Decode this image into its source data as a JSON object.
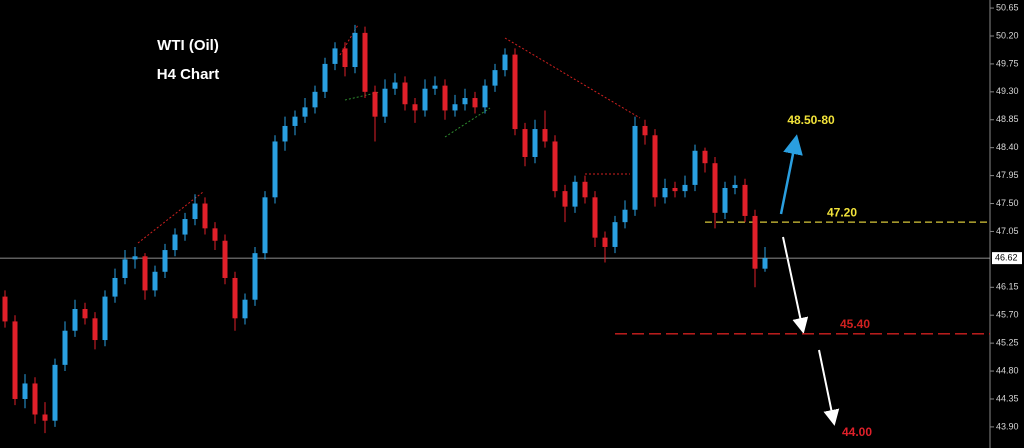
{
  "chart_data": {
    "type": "candlestick",
    "title": "WTI (Oil)",
    "subtitle": "H4 Chart",
    "up_color": "#2a9fe0",
    "down_color": "#e0202a",
    "ylim": [
      43.56,
      50.78
    ],
    "yticks": [
      50.65,
      {
        "value": 50.2,
        "label": "50.20"
      },
      49.75,
      {
        "value": 49.3,
        "label": "49.30"
      },
      48.85,
      {
        "value": 48.4,
        "label": "48.40"
      },
      47.95,
      {
        "value": 47.5,
        "label": "47.50"
      },
      47.05,
      46.15,
      {
        "value": 45.7,
        "label": "45.70"
      },
      45.25,
      {
        "value": 44.8,
        "label": "44.80"
      },
      44.35,
      {
        "value": 43.9,
        "label": "43.90"
      }
    ],
    "open": [
      46.0,
      45.6,
      44.35,
      44.6,
      44.1,
      44.0,
      44.9,
      45.45,
      45.8,
      45.65,
      45.3,
      46.0,
      46.3,
      46.6,
      46.65,
      46.1,
      46.4,
      46.75,
      47.0,
      47.25,
      47.5,
      47.1,
      46.9,
      46.3,
      45.65,
      45.95,
      46.7,
      47.6,
      48.5,
      48.75,
      48.9,
      49.05,
      49.3,
      49.75,
      50.0,
      49.7,
      50.25,
      49.3,
      48.9,
      49.35,
      49.45,
      49.1,
      49.0,
      49.35,
      49.4,
      49.0,
      49.1,
      49.2,
      49.05,
      49.4,
      49.65,
      49.9,
      48.7,
      48.25,
      48.7,
      48.5,
      47.7,
      47.45,
      47.85,
      47.6,
      46.95,
      46.8,
      47.2,
      47.4,
      48.75,
      48.6,
      47.6,
      47.75,
      47.7,
      47.8,
      48.35,
      48.15,
      47.35,
      47.75,
      47.8,
      47.3,
      46.45
    ],
    "high": [
      46.1,
      45.7,
      44.75,
      44.7,
      44.3,
      45.0,
      45.6,
      45.95,
      45.9,
      45.75,
      46.1,
      46.45,
      46.75,
      46.8,
      46.7,
      46.5,
      46.85,
      47.1,
      47.35,
      47.65,
      47.6,
      47.2,
      47.0,
      46.4,
      46.05,
      46.8,
      47.7,
      48.6,
      48.9,
      49.0,
      49.2,
      49.4,
      49.85,
      50.1,
      50.1,
      50.38,
      50.35,
      49.4,
      49.5,
      49.6,
      49.55,
      49.2,
      49.5,
      49.55,
      49.5,
      49.25,
      49.35,
      49.3,
      49.5,
      49.75,
      50.0,
      50.0,
      48.8,
      48.85,
      49.0,
      48.6,
      47.8,
      47.95,
      47.95,
      47.7,
      47.05,
      47.3,
      47.55,
      48.9,
      48.85,
      48.7,
      47.9,
      47.85,
      47.95,
      48.45,
      48.4,
      48.25,
      47.85,
      47.95,
      47.9,
      47.4,
      46.8
    ],
    "low": [
      45.5,
      44.25,
      44.2,
      43.95,
      43.8,
      43.9,
      44.8,
      45.35,
      45.55,
      45.15,
      45.2,
      45.9,
      46.2,
      46.45,
      45.95,
      46.0,
      46.3,
      46.65,
      46.9,
      47.15,
      47.0,
      46.75,
      46.2,
      45.45,
      45.55,
      45.85,
      46.6,
      47.5,
      48.35,
      48.6,
      48.8,
      48.95,
      49.2,
      49.65,
      49.55,
      49.6,
      49.2,
      48.5,
      48.8,
      49.25,
      49.0,
      48.8,
      48.9,
      49.25,
      48.85,
      48.9,
      49.0,
      48.95,
      48.95,
      49.3,
      49.55,
      48.6,
      48.1,
      48.15,
      48.4,
      47.6,
      47.2,
      47.35,
      47.5,
      46.8,
      46.55,
      46.7,
      47.1,
      47.3,
      48.45,
      47.45,
      47.5,
      47.6,
      47.6,
      47.7,
      48.0,
      47.1,
      47.25,
      47.65,
      47.2,
      46.15,
      46.4
    ],
    "close": [
      45.6,
      44.35,
      44.6,
      44.1,
      44.0,
      44.9,
      45.45,
      45.8,
      45.65,
      45.3,
      46.0,
      46.3,
      46.6,
      46.65,
      46.1,
      46.4,
      46.75,
      47.0,
      47.25,
      47.5,
      47.1,
      46.9,
      46.3,
      45.65,
      45.95,
      46.7,
      47.6,
      48.5,
      48.75,
      48.9,
      49.05,
      49.3,
      49.75,
      50.0,
      49.7,
      50.25,
      49.3,
      48.9,
      49.35,
      49.45,
      49.1,
      49.0,
      49.35,
      49.4,
      49.0,
      49.1,
      49.2,
      49.05,
      49.4,
      49.65,
      49.9,
      48.7,
      48.25,
      48.7,
      48.5,
      47.7,
      47.45,
      47.85,
      47.6,
      46.95,
      46.8,
      47.2,
      47.4,
      48.75,
      48.6,
      47.6,
      47.75,
      47.7,
      47.8,
      48.35,
      48.15,
      47.35,
      47.75,
      47.8,
      47.3,
      46.45,
      46.62
    ],
    "last_price": 46.62,
    "levels": [
      {
        "value": 47.2,
        "label": "47.20",
        "color": "#d8c83a"
      },
      {
        "value": 45.4,
        "label": "45.40",
        "color": "#d0201f"
      }
    ],
    "annotations": [
      "48.50-80",
      "44.00"
    ]
  }
}
